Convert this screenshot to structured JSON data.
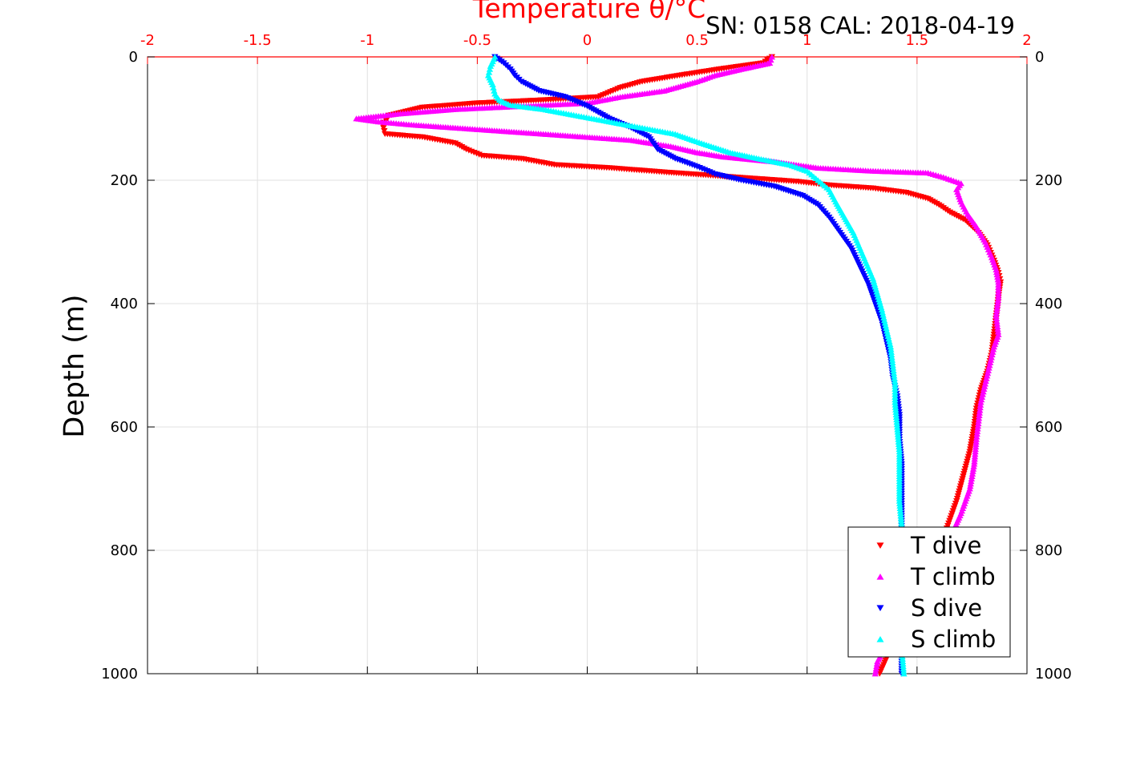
{
  "chart_data": {
    "type": "scatter",
    "title": "Temperature θ/°C",
    "annotation": "SN: 0158  CAL: 2018-04-19",
    "xlabel": "Temperature θ/°C",
    "ylabel": "Depth (m)",
    "xlim": [
      -2,
      2
    ],
    "ylim": [
      0,
      1000
    ],
    "y_reversed": true,
    "x_axis_position": "top",
    "x_tick_labels": [
      "-2",
      "-1.5",
      "-1",
      "-0.5",
      "0",
      "0.5",
      "1",
      "1.5",
      "2"
    ],
    "y_tick_labels": [
      "0",
      "200",
      "400",
      "600",
      "800",
      "1000"
    ],
    "grid": true,
    "legend_position": "bottom-right",
    "series": [
      {
        "name": "T dive",
        "marker": "triangle-down",
        "color": "#ff0000",
        "points": [
          [
            0.84,
            0
          ],
          [
            0.8,
            10
          ],
          [
            0.6,
            20
          ],
          [
            0.42,
            30
          ],
          [
            0.25,
            40
          ],
          [
            0.15,
            50
          ],
          [
            0.05,
            65
          ],
          [
            -0.2,
            70
          ],
          [
            -0.5,
            75
          ],
          [
            -0.75,
            82
          ],
          [
            -0.9,
            95
          ],
          [
            -0.93,
            110
          ],
          [
            -0.92,
            125
          ],
          [
            -0.75,
            130
          ],
          [
            -0.6,
            140
          ],
          [
            -0.55,
            150
          ],
          [
            -0.48,
            160
          ],
          [
            -0.3,
            165
          ],
          [
            -0.15,
            175
          ],
          [
            0.1,
            180
          ],
          [
            0.35,
            187
          ],
          [
            0.55,
            192
          ],
          [
            0.75,
            197
          ],
          [
            0.95,
            202
          ],
          [
            1.1,
            208
          ],
          [
            1.3,
            213
          ],
          [
            1.45,
            220
          ],
          [
            1.55,
            230
          ],
          [
            1.6,
            240
          ],
          [
            1.65,
            252
          ],
          [
            1.72,
            265
          ],
          [
            1.78,
            285
          ],
          [
            1.82,
            305
          ],
          [
            1.85,
            330
          ],
          [
            1.87,
            350
          ],
          [
            1.88,
            365
          ],
          [
            1.87,
            390
          ],
          [
            1.86,
            420
          ],
          [
            1.85,
            450
          ],
          [
            1.84,
            480
          ],
          [
            1.82,
            510
          ],
          [
            1.79,
            540
          ],
          [
            1.77,
            570
          ],
          [
            1.76,
            600
          ],
          [
            1.74,
            640
          ],
          [
            1.71,
            680
          ],
          [
            1.68,
            720
          ],
          [
            1.64,
            760
          ],
          [
            1.6,
            800
          ],
          [
            1.55,
            840
          ],
          [
            1.5,
            880
          ],
          [
            1.44,
            920
          ],
          [
            1.38,
            960
          ],
          [
            1.33,
            1000
          ]
        ]
      },
      {
        "name": "T climb",
        "marker": "triangle-up",
        "color": "#ff00ff",
        "points": [
          [
            0.84,
            0
          ],
          [
            0.83,
            10
          ],
          [
            0.7,
            20
          ],
          [
            0.58,
            30
          ],
          [
            0.5,
            40
          ],
          [
            0.35,
            55
          ],
          [
            0.15,
            65
          ],
          [
            0.0,
            75
          ],
          [
            -0.3,
            80
          ],
          [
            -0.6,
            85
          ],
          [
            -0.85,
            92
          ],
          [
            -1.05,
            100
          ],
          [
            -0.95,
            105
          ],
          [
            -0.8,
            110
          ],
          [
            -0.6,
            115
          ],
          [
            -0.4,
            120
          ],
          [
            -0.2,
            125
          ],
          [
            0.0,
            130
          ],
          [
            0.2,
            135
          ],
          [
            0.38,
            145
          ],
          [
            0.5,
            155
          ],
          [
            0.62,
            162
          ],
          [
            0.85,
            170
          ],
          [
            1.05,
            180
          ],
          [
            1.3,
            185
          ],
          [
            1.55,
            188
          ],
          [
            1.62,
            195
          ],
          [
            1.7,
            205
          ],
          [
            1.68,
            215
          ],
          [
            1.7,
            235
          ],
          [
            1.73,
            255
          ],
          [
            1.77,
            275
          ],
          [
            1.81,
            300
          ],
          [
            1.84,
            325
          ],
          [
            1.86,
            345
          ],
          [
            1.87,
            365
          ],
          [
            1.87,
            390
          ],
          [
            1.86,
            420
          ],
          [
            1.87,
            450
          ],
          [
            1.85,
            470
          ],
          [
            1.83,
            500
          ],
          [
            1.81,
            530
          ],
          [
            1.79,
            560
          ],
          [
            1.78,
            590
          ],
          [
            1.77,
            620
          ],
          [
            1.76,
            660
          ],
          [
            1.74,
            700
          ],
          [
            1.7,
            740
          ],
          [
            1.65,
            780
          ],
          [
            1.6,
            820
          ],
          [
            1.52,
            860
          ],
          [
            1.45,
            900
          ],
          [
            1.38,
            940
          ],
          [
            1.32,
            980
          ],
          [
            1.31,
            1000
          ]
        ]
      },
      {
        "name": "S dive",
        "marker": "triangle-down",
        "color": "#0000ff",
        "points": [
          [
            -0.42,
            0
          ],
          [
            -0.38,
            10
          ],
          [
            -0.35,
            20
          ],
          [
            -0.33,
            30
          ],
          [
            -0.3,
            40
          ],
          [
            -0.22,
            55
          ],
          [
            -0.1,
            65
          ],
          [
            0.0,
            80
          ],
          [
            0.1,
            100
          ],
          [
            0.2,
            115
          ],
          [
            0.28,
            130
          ],
          [
            0.32,
            150
          ],
          [
            0.4,
            165
          ],
          [
            0.5,
            178
          ],
          [
            0.58,
            190
          ],
          [
            0.7,
            200
          ],
          [
            0.85,
            210
          ],
          [
            0.98,
            225
          ],
          [
            1.05,
            240
          ],
          [
            1.1,
            260
          ],
          [
            1.15,
            285
          ],
          [
            1.2,
            310
          ],
          [
            1.24,
            340
          ],
          [
            1.28,
            370
          ],
          [
            1.31,
            400
          ],
          [
            1.34,
            430
          ],
          [
            1.36,
            460
          ],
          [
            1.38,
            490
          ],
          [
            1.39,
            520
          ],
          [
            1.41,
            550
          ],
          [
            1.42,
            580
          ],
          [
            1.42,
            620
          ],
          [
            1.43,
            660
          ],
          [
            1.43,
            700
          ],
          [
            1.43,
            740
          ],
          [
            1.43,
            780
          ],
          [
            1.43,
            820
          ],
          [
            1.43,
            860
          ],
          [
            1.43,
            900
          ],
          [
            1.43,
            940
          ],
          [
            1.43,
            980
          ],
          [
            1.43,
            1000
          ]
        ]
      },
      {
        "name": "S climb",
        "marker": "triangle-up",
        "color": "#00ffff",
        "points": [
          [
            -0.42,
            0
          ],
          [
            -0.44,
            15
          ],
          [
            -0.45,
            30
          ],
          [
            -0.43,
            45
          ],
          [
            -0.42,
            60
          ],
          [
            -0.4,
            70
          ],
          [
            -0.35,
            78
          ],
          [
            -0.2,
            85
          ],
          [
            -0.05,
            95
          ],
          [
            0.1,
            105
          ],
          [
            0.25,
            115
          ],
          [
            0.4,
            125
          ],
          [
            0.52,
            140
          ],
          [
            0.65,
            155
          ],
          [
            0.78,
            165
          ],
          [
            0.92,
            175
          ],
          [
            1.0,
            185
          ],
          [
            1.05,
            200
          ],
          [
            1.1,
            215
          ],
          [
            1.13,
            235
          ],
          [
            1.17,
            260
          ],
          [
            1.21,
            285
          ],
          [
            1.24,
            310
          ],
          [
            1.27,
            335
          ],
          [
            1.3,
            360
          ],
          [
            1.32,
            385
          ],
          [
            1.34,
            410
          ],
          [
            1.36,
            440
          ],
          [
            1.38,
            470
          ],
          [
            1.39,
            500
          ],
          [
            1.4,
            530
          ],
          [
            1.4,
            560
          ],
          [
            1.41,
            600
          ],
          [
            1.42,
            640
          ],
          [
            1.42,
            680
          ],
          [
            1.42,
            720
          ],
          [
            1.43,
            760
          ],
          [
            1.43,
            800
          ],
          [
            1.43,
            840
          ],
          [
            1.43,
            880
          ],
          [
            1.43,
            920
          ],
          [
            1.43,
            960
          ],
          [
            1.44,
            1000
          ]
        ]
      }
    ]
  }
}
